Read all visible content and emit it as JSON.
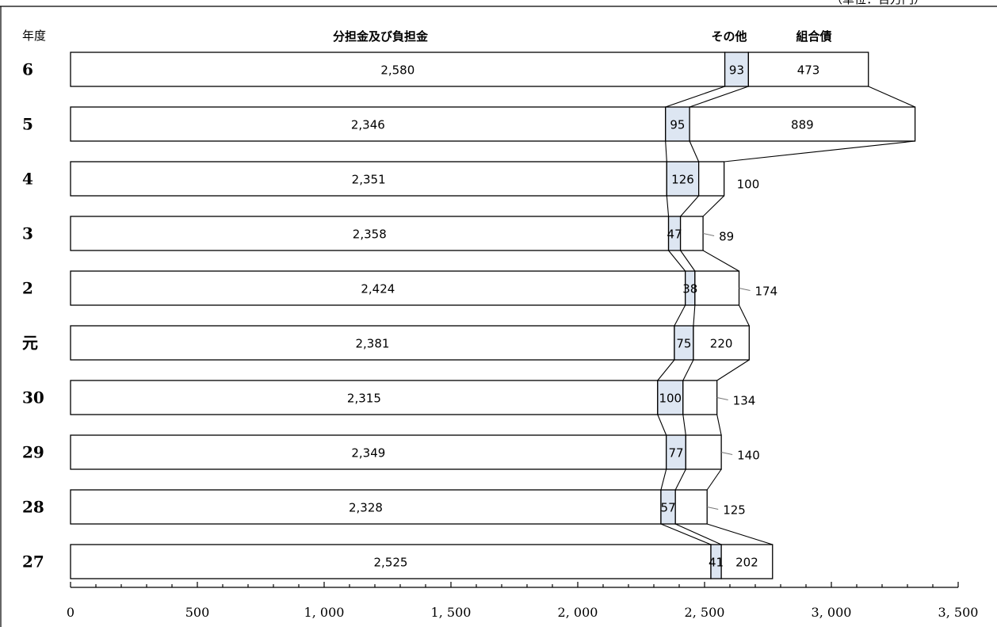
{
  "chart_data": {
    "type": "bar",
    "orientation": "horizontal",
    "stacked": true,
    "unit_label": "（単位：百万円）",
    "category_header": "年度",
    "categories": [
      "6",
      "5",
      "4",
      "3",
      "2",
      "元",
      "30",
      "29",
      "28",
      "27"
    ],
    "series": [
      {
        "name": "分担金及び負担金",
        "values": [
          2580,
          2346,
          2351,
          2358,
          2424,
          2381,
          2315,
          2349,
          2328,
          2525
        ]
      },
      {
        "name": "その他",
        "values": [
          93,
          95,
          126,
          47,
          38,
          75,
          100,
          77,
          57,
          41
        ]
      },
      {
        "name": "組合債",
        "values": [
          473,
          889,
          100,
          89,
          174,
          220,
          134,
          140,
          125,
          202
        ]
      }
    ],
    "xlim": [
      0,
      3500
    ],
    "xticks": [
      "0",
      "500",
      "1, 000",
      "1, 500",
      "2, 000",
      "2, 500",
      "3, 000",
      "3, 500"
    ],
    "colors": {
      "main": "#ffffff",
      "other": "#dde6f2",
      "bond": "#ffffff",
      "stroke": "#000000"
    }
  }
}
